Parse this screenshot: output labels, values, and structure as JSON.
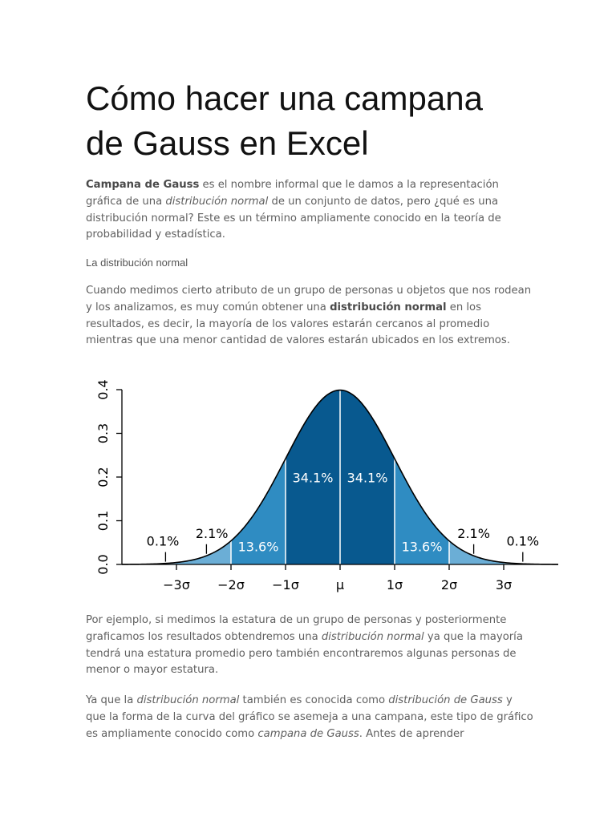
{
  "title_lines": [
    "Cómo hacer una campana",
    "de Gauss en Excel"
  ],
  "p1": [
    {
      "t": "Campana de Gauss",
      "s": "b"
    },
    {
      "t": " es el nombre informal que le damos a la representación gráfica de una ",
      "s": ""
    },
    {
      "t": "distribución normal",
      "s": "i"
    },
    {
      "t": " de un conjunto de datos, pero ¿qué es una distribución normal? Este es un término ampliamente conocido en la teoría de probabilidad y estadística.",
      "s": ""
    }
  ],
  "subheading": "La distribución normal",
  "p2": [
    {
      "t": "Cuando medimos cierto atributo de un grupo de personas u objetos que nos rodean y los analizamos, es muy común obtener una ",
      "s": ""
    },
    {
      "t": "distribución normal",
      "s": "b"
    },
    {
      "t": " en los resultados, es decir, la mayoría de los valores estarán cercanos al promedio mientras que una menor cantidad de valores estarán ubicados en los extremos.",
      "s": ""
    }
  ],
  "p3": [
    {
      "t": "Por ejemplo, si medimos la estatura de un grupo de personas y posteriormente graficamos los resultados obtendremos una ",
      "s": ""
    },
    {
      "t": "distribución normal",
      "s": "i"
    },
    {
      "t": " ya que la mayoría tendrá una estatura promedio pero también encontraremos algunas personas de menor o mayor estatura.",
      "s": ""
    }
  ],
  "p4": [
    {
      "t": "Ya que la ",
      "s": ""
    },
    {
      "t": "distribución normal",
      "s": "i"
    },
    {
      "t": " también es conocida como ",
      "s": ""
    },
    {
      "t": "distribución de Gauss",
      "s": "i"
    },
    {
      "t": " y que la forma de la curva del gráfico se asemeja a una campana, este tipo de gráfico es ampliamente conocido como ",
      "s": ""
    },
    {
      "t": "campana de Gauss",
      "s": "i"
    },
    {
      "t": ". Antes de aprender",
      "s": ""
    }
  ],
  "chart_data": {
    "type": "area",
    "distribution": "standard normal density",
    "mean": 0,
    "sd": 1,
    "xlim": [
      -4,
      4
    ],
    "ylim": [
      0,
      0.4
    ],
    "y_ticks": [
      "0.0",
      "0.1",
      "0.2",
      "0.3",
      "0.4"
    ],
    "x_ticks": [
      {
        "x": -3,
        "label": "−3σ"
      },
      {
        "x": -2,
        "label": "−2σ"
      },
      {
        "x": -1,
        "label": "−1σ"
      },
      {
        "x": 0,
        "label": "μ"
      },
      {
        "x": 1,
        "label": "1σ"
      },
      {
        "x": 2,
        "label": "2σ"
      },
      {
        "x": 3,
        "label": "3σ"
      }
    ],
    "regions": [
      {
        "from": -3,
        "to": -2,
        "color": "#6baed6"
      },
      {
        "from": -2,
        "to": -1,
        "color": "#2f8cc2"
      },
      {
        "from": -1,
        "to": 0,
        "color": "#08598f"
      },
      {
        "from": 0,
        "to": 1,
        "color": "#08598f"
      },
      {
        "from": 1,
        "to": 2,
        "color": "#2f8cc2"
      },
      {
        "from": 2,
        "to": 3,
        "color": "#6baed6"
      },
      {
        "from": 3,
        "to": 4,
        "color": "#9ecae1"
      },
      {
        "from": -4,
        "to": -3,
        "color": "#9ecae1"
      }
    ],
    "percent_labels": [
      {
        "label": "34.1%",
        "x": -0.5,
        "y": 0.188,
        "color": "#ffffff"
      },
      {
        "label": "34.1%",
        "x": 0.5,
        "y": 0.188,
        "color": "#ffffff"
      },
      {
        "label": "13.6%",
        "x": -1.5,
        "y": 0.03,
        "color": "#ffffff"
      },
      {
        "label": "13.6%",
        "x": 1.5,
        "y": 0.03,
        "color": "#ffffff"
      },
      {
        "label": "2.1%",
        "x": -2.35,
        "y": 0.061,
        "color": "#000000",
        "marker_x": -2.45
      },
      {
        "label": "2.1%",
        "x": 2.45,
        "y": 0.061,
        "color": "#000000",
        "marker_x": 2.45
      },
      {
        "label": "0.1%",
        "x": -3.25,
        "y": 0.043,
        "color": "#000000",
        "marker_x": -3.2
      },
      {
        "label": "0.1%",
        "x": 3.35,
        "y": 0.043,
        "color": "#000000",
        "marker_x": 3.35
      }
    ]
  }
}
